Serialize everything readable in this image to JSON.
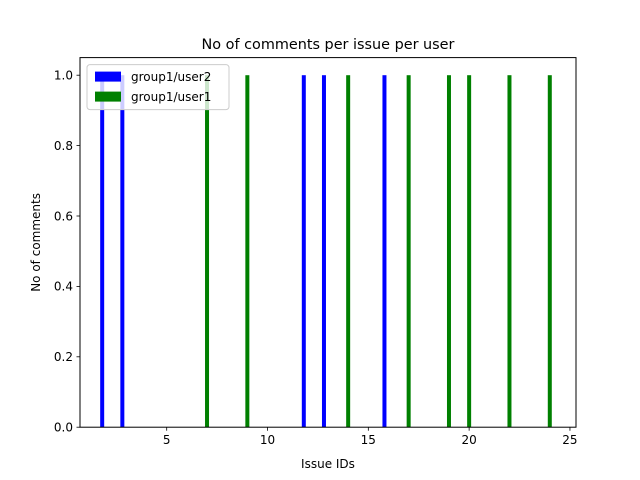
{
  "chart_data": {
    "type": "bar",
    "title": "No of comments per issue per user",
    "xlabel": "Issue IDs",
    "ylabel": "No of comments",
    "xlim": [
      0.7,
      25.3
    ],
    "ylim": [
      0,
      1.05
    ],
    "xticks": [
      5,
      10,
      15,
      20,
      25
    ],
    "yticks": [
      0.0,
      0.2,
      0.4,
      0.6,
      0.8,
      1.0
    ],
    "grid": false,
    "legend_position": "top-left",
    "series": [
      {
        "name": "group1/user2",
        "color": "#0000ff",
        "x": [
          1.8,
          2.8,
          11.8,
          12.8,
          15.8
        ],
        "values": [
          1,
          1,
          1,
          1,
          1
        ]
      },
      {
        "name": "group1/user1",
        "color": "#008000",
        "x": [
          7,
          9,
          14,
          17,
          19,
          20,
          22,
          24
        ],
        "values": [
          1,
          1,
          1,
          1,
          1,
          1,
          1,
          1
        ]
      }
    ]
  }
}
